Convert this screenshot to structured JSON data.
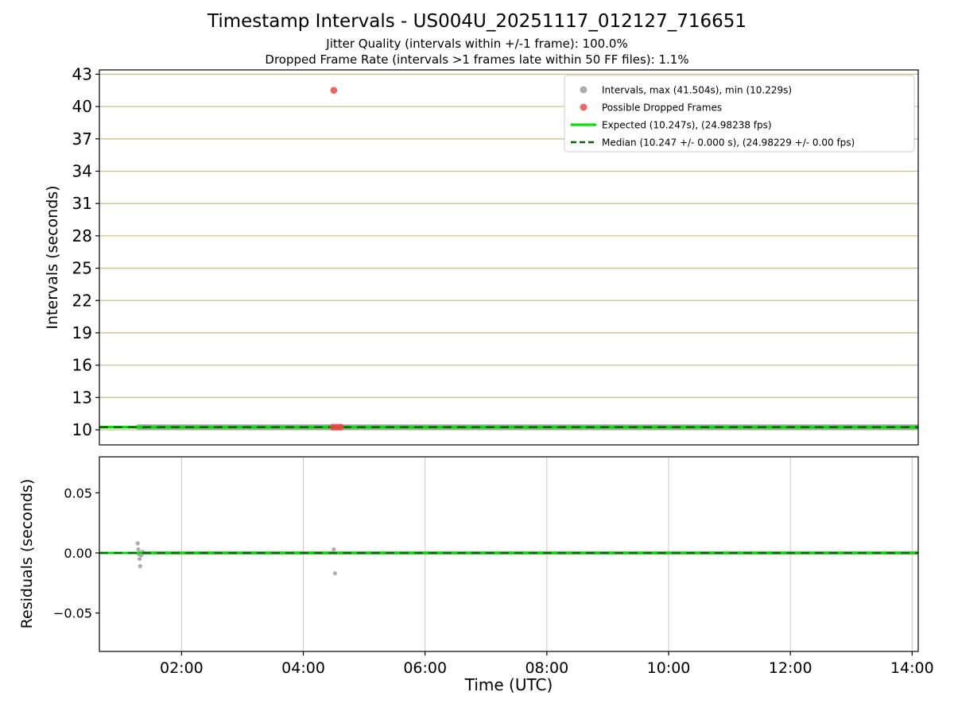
{
  "chart_data": {
    "type": "scatter",
    "title": "Timestamp Intervals - US004U_20251117_012127_716651",
    "subtitles": [
      "Jitter Quality (intervals within +/-1 frame): 100.0%",
      "Dropped Frame Rate (intervals >1 frames late within 50 FF files): 1.1%"
    ],
    "stats": {
      "max_interval_s": 41.504,
      "min_interval_s": 10.229,
      "expected_interval_s": 10.247,
      "expected_fps": 24.98238,
      "median_interval_s": 10.247,
      "median_jitter_s": 0.0,
      "median_fps": 24.98229,
      "median_fps_jitter": 0.0,
      "jitter_quality_pct": 100.0,
      "dropped_frame_rate_pct": 1.1,
      "ff_file_window": 50
    },
    "time_axis": {
      "label": "Time (UTC)",
      "lim_hours": [
        0.65,
        14.1
      ],
      "ticks_hours": [
        2,
        4,
        6,
        8,
        10,
        12,
        14
      ],
      "tick_labels": [
        "02:00",
        "04:00",
        "06:00",
        "08:00",
        "10:00",
        "12:00",
        "14:00"
      ]
    },
    "intervals_panel": {
      "ylabel": "Intervals (seconds)",
      "ylim": [
        8.6,
        43.4
      ],
      "yticks": [
        10,
        13,
        16,
        19,
        22,
        25,
        28,
        31,
        34,
        37,
        40,
        43
      ],
      "expected_value": 10.247,
      "median_value": 10.247,
      "data_line": {
        "x_start": 1.28,
        "x_end": 14.1,
        "y": 10.247
      },
      "start_cluster": [
        [
          1.28,
          10.26
        ],
        [
          1.31,
          10.24
        ],
        [
          1.34,
          10.25
        ],
        [
          1.37,
          10.25
        ]
      ],
      "dropped_points": [
        [
          4.5,
          41.504
        ],
        [
          4.49,
          10.247
        ],
        [
          4.55,
          10.247
        ],
        [
          4.61,
          10.247
        ]
      ]
    },
    "residuals_panel": {
      "ylabel": "Residuals (seconds)",
      "ylim": [
        -0.082,
        0.08
      ],
      "yticks": [
        -0.05,
        0.0,
        0.05
      ],
      "ytick_labels": [
        "−0.05",
        "0.00",
        "0.05"
      ],
      "zero_value": 0.0,
      "data_line": {
        "x_start": 1.28,
        "x_end": 14.1,
        "y": 0.0
      },
      "points": [
        [
          1.28,
          0.008
        ],
        [
          1.29,
          0.003
        ],
        [
          1.3,
          -0.001
        ],
        [
          1.31,
          -0.005
        ],
        [
          1.32,
          -0.011
        ],
        [
          1.34,
          -0.002
        ],
        [
          1.36,
          0.001
        ],
        [
          4.5,
          0.003
        ],
        [
          4.52,
          -0.017
        ]
      ]
    },
    "legend": {
      "items": [
        {
          "label": "Intervals, max (41.504s), min (10.229s)",
          "marker": "dot",
          "color": "#a3a3a3"
        },
        {
          "label": "Possible Dropped Frames",
          "marker": "dot",
          "color": "#ee5555"
        },
        {
          "label": "Expected (10.247s), (24.98238 fps)",
          "marker": "line",
          "color": "#00dd00"
        },
        {
          "label": "Median (10.247 +/- 0.000 s), (24.98229 +/- 0.00 fps)",
          "marker": "dashed-line",
          "color": "#006400"
        }
      ]
    },
    "colors": {
      "points": "#a0a0a0",
      "dropped": "#ee4444",
      "expected": "#00dd00",
      "median": "#006400",
      "grid_top": "#cec28a",
      "grid_bottom": "#cccccc",
      "spine": "#000000",
      "background": "#ffffff"
    }
  }
}
